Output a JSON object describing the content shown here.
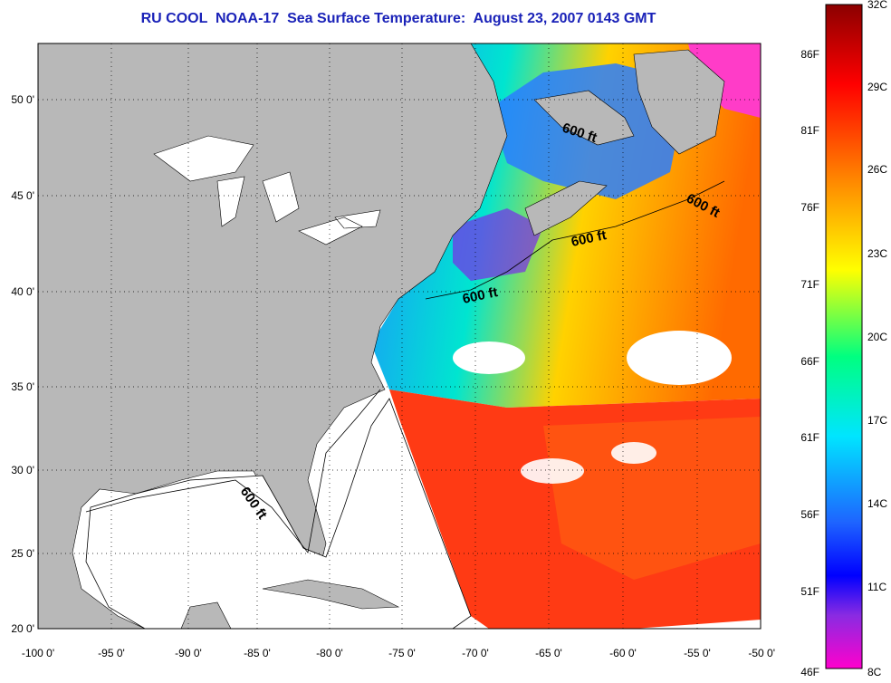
{
  "title": "RU COOL  NOAA-17  Sea Surface Temperature:  August 23, 2007 0143 GMT",
  "map": {
    "lat_labels": [
      "50 0'",
      "45 0'",
      "40 0'",
      "35 0'",
      "30 0'",
      "25 0'",
      "20 0'"
    ],
    "lon_labels": [
      "-100 0'",
      "-95 0'",
      "-90 0'",
      "-85 0'",
      "-80 0'",
      "-75 0'",
      "-70 0'",
      "-65 0'",
      "-60 0'",
      "-55 0'",
      "-50 0'"
    ],
    "isobath_labels": [
      "600 ft",
      "600 ft",
      "600 ft",
      "600 ft",
      "600 ft"
    ],
    "colors": {
      "land": "#b8b8b8",
      "no_data": "#ffffff",
      "title": "#1a22b8"
    }
  },
  "colorbar": {
    "fahrenheit_labels": [
      "86F",
      "81F",
      "76F",
      "71F",
      "66F",
      "61F",
      "56F",
      "51F",
      "46F"
    ],
    "celsius_labels": [
      "32C",
      "29C",
      "26C",
      "23C",
      "20C",
      "17C",
      "14C",
      "11C",
      "8C"
    ]
  }
}
